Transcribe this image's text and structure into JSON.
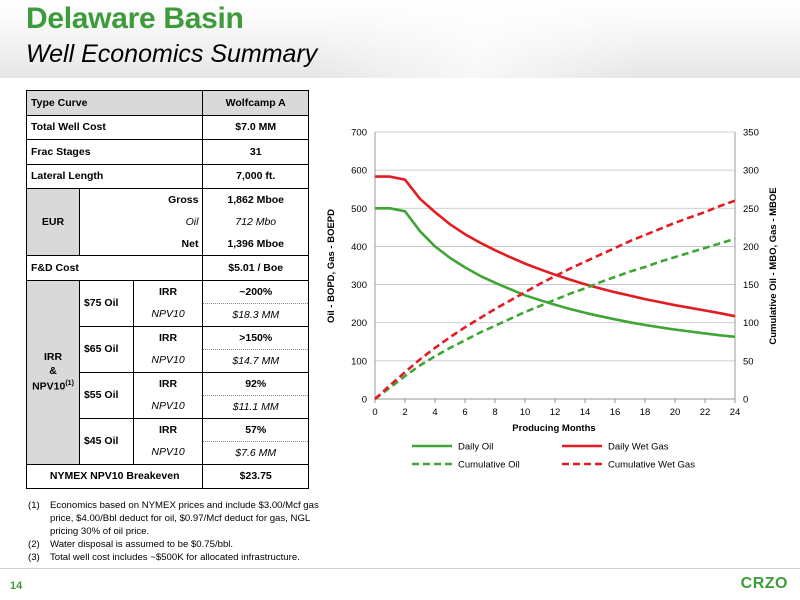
{
  "header": {
    "title": "Delaware Basin",
    "subtitle": "Well Economics Summary"
  },
  "table": {
    "type_curve_label": "Type Curve",
    "type_curve_value": "Wolfcamp A",
    "total_well_cost_label": "Total Well Cost",
    "total_well_cost_value": "$7.0 MM",
    "frac_stages_label": "Frac Stages",
    "frac_stages_value": "31",
    "lateral_length_label": "Lateral Length",
    "lateral_length_value": "7,000 ft.",
    "eur_label": "EUR",
    "eur_rows": [
      {
        "label": "Gross",
        "value": "1,862 Mboe"
      },
      {
        "label": "Oil",
        "value": "712 Mbo"
      },
      {
        "label": "Net",
        "value": "1,396 Mboe"
      }
    ],
    "fd_cost_label": "F&D Cost",
    "fd_cost_value": "$5.01 / Boe",
    "irr_group_label_1": "IRR",
    "irr_group_label_2": "&",
    "irr_group_label_3": "NPV10",
    "irr_group_sup": "(1)",
    "price_cases": [
      {
        "price": "$75 Oil",
        "irr_label": "IRR",
        "irr": "~200%",
        "npv_label": "NPV10",
        "npv": "$18.3 MM"
      },
      {
        "price": "$65 Oil",
        "irr_label": "IRR",
        "irr": ">150%",
        "npv_label": "NPV10",
        "npv": "$14.7 MM"
      },
      {
        "price": "$55 Oil",
        "irr_label": "IRR",
        "irr": "92%",
        "npv_label": "NPV10",
        "npv": "$11.1 MM"
      },
      {
        "price": "$45 Oil",
        "irr_label": "IRR",
        "irr": "57%",
        "npv_label": "NPV10",
        "npv": "$7.6 MM"
      }
    ],
    "breakeven_label": "NYMEX NPV10 Breakeven",
    "breakeven_value": "$23.75"
  },
  "footnotes": [
    {
      "num": "(1)",
      "text": "Economics based on NYMEX prices and include $3.00/Mcf gas price, $4.00/Bbl deduct for oil, $0.97/Mcf deduct for gas, NGL pricing 30% of oil price."
    },
    {
      "num": "(2)",
      "text": "Water disposal is assumed to be $0.75/bbl."
    },
    {
      "num": "(3)",
      "text": "Total well cost includes ~$500K for allocated infrastructure."
    }
  ],
  "footer": {
    "page_number": "14",
    "logo_text": "CRZO"
  },
  "colors": {
    "brand_green": "#3e9b3b",
    "oil_green": "#3fa535",
    "gas_red": "#e31b23"
  },
  "chart_data": {
    "type": "line",
    "xlabel": "Producing Months",
    "ylabel": "Oil - BOPD, Gas - BOEPD",
    "y2label": "Cumulative Oil - MBO, Gas - MBOE",
    "xlim": [
      0,
      24
    ],
    "xticks": [
      0,
      2,
      4,
      6,
      8,
      10,
      12,
      14,
      16,
      18,
      20,
      22,
      24
    ],
    "ylim": [
      0,
      700
    ],
    "yticks": [
      0,
      100,
      200,
      300,
      400,
      500,
      600,
      700
    ],
    "y2lim": [
      0,
      350
    ],
    "y2ticks": [
      0,
      50,
      100,
      150,
      200,
      250,
      300,
      350
    ],
    "grid": true,
    "legend_position": "bottom",
    "x": [
      0,
      1,
      2,
      3,
      4,
      5,
      6,
      7,
      8,
      9,
      10,
      11,
      12,
      13,
      14,
      15,
      16,
      17,
      18,
      19,
      20,
      21,
      22,
      23,
      24
    ],
    "series": [
      {
        "name": "Daily Oil",
        "axis": "left",
        "style": "solid",
        "color": "#3fa535",
        "values": [
          500,
          500,
          492,
          440,
          400,
          370,
          345,
          323,
          305,
          288,
          272,
          259,
          247,
          236,
          226,
          217,
          209,
          201,
          194,
          188,
          182,
          177,
          172,
          167,
          163
        ]
      },
      {
        "name": "Daily Wet Gas",
        "axis": "left",
        "style": "solid",
        "color": "#e31b23",
        "values": [
          583,
          583,
          575,
          525,
          490,
          458,
          432,
          410,
          390,
          372,
          355,
          340,
          326,
          313,
          301,
          290,
          280,
          271,
          262,
          254,
          246,
          239,
          232,
          225,
          217
        ]
      },
      {
        "name": "Cumulative Oil",
        "axis": "right",
        "style": "dashed",
        "color": "#3fa535",
        "values": [
          0,
          15,
          30,
          44,
          56,
          67,
          77,
          87,
          96,
          105,
          114,
          122,
          130,
          138,
          145,
          153,
          160,
          167,
          173,
          180,
          186,
          192,
          198,
          204,
          210
        ]
      },
      {
        "name": "Cumulative Wet Gas",
        "axis": "right",
        "style": "dashed",
        "color": "#e31b23",
        "values": [
          0,
          18,
          35,
          52,
          67,
          81,
          94,
          106,
          118,
          129,
          140,
          151,
          161,
          171,
          180,
          189,
          198,
          207,
          215,
          223,
          231,
          238,
          245,
          253,
          260
        ]
      }
    ]
  }
}
